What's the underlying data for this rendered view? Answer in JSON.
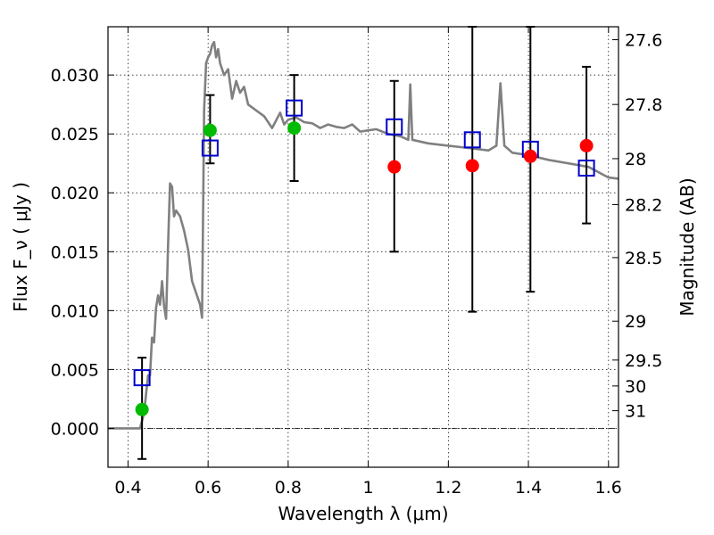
{
  "chart_data": {
    "type": "scatter",
    "xlabel": "Wavelength  λ (μm)",
    "ylabel": "Flux  F_ν  ( μJy )",
    "ylabel_right": "Magnitude (AB)",
    "xlim": [
      0.35,
      1.625
    ],
    "ylim": [
      -0.0033,
      0.0341
    ],
    "x_ticks": [
      0.4,
      0.6,
      0.8,
      1.0,
      1.2,
      1.4,
      1.6
    ],
    "x_tick_labels": [
      "0.4",
      "0.6",
      "0.8",
      "1",
      "1.2",
      "1.4",
      "1.6"
    ],
    "y_ticks": [
      0.0,
      0.005,
      0.01,
      0.015,
      0.02,
      0.025,
      0.03
    ],
    "y_tick_labels": [
      "0.000",
      "0.005",
      "0.010",
      "0.015",
      "0.020",
      "0.025",
      "0.030"
    ],
    "right_ticks": [
      {
        "label": "27.6",
        "flux": 0.033
      },
      {
        "label": "27.8",
        "flux": 0.0275
      },
      {
        "label": "28",
        "flux": 0.0229
      },
      {
        "label": "28.2",
        "flux": 0.019
      },
      {
        "label": "28.5",
        "flux": 0.0145
      },
      {
        "label": "29",
        "flux": 0.0091
      },
      {
        "label": "29.5",
        "flux": 0.0058
      },
      {
        "label": "30",
        "flux": 0.0036
      },
      {
        "label": "31",
        "flux": 0.0015
      }
    ],
    "grid": true,
    "colors": {
      "model": "#808080",
      "template_points": "#0000cc",
      "detections": "#00bb00",
      "measurements": "#ff0000",
      "errorbars": "#000000"
    },
    "series": [
      {
        "marker": "line",
        "x": [
          0.35,
          0.43,
          0.44,
          0.45,
          0.455,
          0.46,
          0.465,
          0.47,
          0.475,
          0.48,
          0.485,
          0.49,
          0.495,
          0.5,
          0.505,
          0.51,
          0.515,
          0.52,
          0.53,
          0.54,
          0.55,
          0.56,
          0.57,
          0.58,
          0.585,
          0.59,
          0.595,
          0.6,
          0.605,
          0.61,
          0.615,
          0.62,
          0.625,
          0.63,
          0.64,
          0.65,
          0.66,
          0.67,
          0.68,
          0.69,
          0.7,
          0.72,
          0.74,
          0.76,
          0.78,
          0.79,
          0.8,
          0.82,
          0.84,
          0.86,
          0.88,
          0.9,
          0.92,
          0.94,
          0.96,
          0.98,
          1.0,
          1.02,
          1.05,
          1.08,
          1.1,
          1.105,
          1.11,
          1.15,
          1.2,
          1.25,
          1.3,
          1.32,
          1.33,
          1.34,
          1.36,
          1.4,
          1.45,
          1.5,
          1.55,
          1.6,
          1.625
        ],
        "y": [
          0.0,
          0.0,
          0.0013,
          0.0045,
          0.0045,
          0.0077,
          0.0073,
          0.0102,
          0.0113,
          0.0105,
          0.0125,
          0.0104,
          0.0093,
          0.0155,
          0.0208,
          0.0205,
          0.018,
          0.0185,
          0.018,
          0.0168,
          0.0152,
          0.0125,
          0.0115,
          0.0105,
          0.0094,
          0.027,
          0.031,
          0.0315,
          0.0318,
          0.0325,
          0.0328,
          0.0315,
          0.0322,
          0.031,
          0.03,
          0.0305,
          0.028,
          0.0295,
          0.0285,
          0.029,
          0.0275,
          0.027,
          0.0265,
          0.0255,
          0.0268,
          0.0258,
          0.0262,
          0.0264,
          0.026,
          0.0259,
          0.0255,
          0.0258,
          0.0256,
          0.0255,
          0.0258,
          0.0252,
          0.0253,
          0.0254,
          0.025,
          0.0248,
          0.0245,
          0.0292,
          0.0245,
          0.0242,
          0.024,
          0.0238,
          0.0236,
          0.024,
          0.0293,
          0.024,
          0.0234,
          0.0232,
          0.0228,
          0.0225,
          0.0222,
          0.0213,
          0.0212
        ]
      },
      {
        "marker": "open-square",
        "x": [
          0.435,
          0.605,
          0.815,
          1.065,
          1.26,
          1.405,
          1.545
        ],
        "y": [
          0.0043,
          0.0238,
          0.0272,
          0.0256,
          0.0245,
          0.0237,
          0.0221
        ]
      },
      {
        "marker": "filled-circle",
        "x": [
          0.435,
          0.605,
          0.815
        ],
        "y": [
          0.0016,
          0.0253,
          0.0255
        ]
      },
      {
        "marker": "filled-circle",
        "x": [
          1.065,
          1.26,
          1.405,
          1.545
        ],
        "y": [
          0.0222,
          0.0223,
          0.0231,
          0.024
        ]
      }
    ],
    "errorbars": [
      {
        "x": 0.435,
        "low": -0.0026,
        "high": 0.006
      },
      {
        "x": 0.605,
        "low": 0.0225,
        "high": 0.0283
      },
      {
        "x": 0.815,
        "low": 0.021,
        "high": 0.03
      },
      {
        "x": 1.065,
        "low": 0.015,
        "high": 0.0295
      },
      {
        "x": 1.26,
        "low": 0.0099,
        "high": 0.0341
      },
      {
        "x": 1.405,
        "low": 0.0116,
        "high": 0.0341
      },
      {
        "x": 1.545,
        "low": 0.0174,
        "high": 0.0307
      }
    ]
  }
}
